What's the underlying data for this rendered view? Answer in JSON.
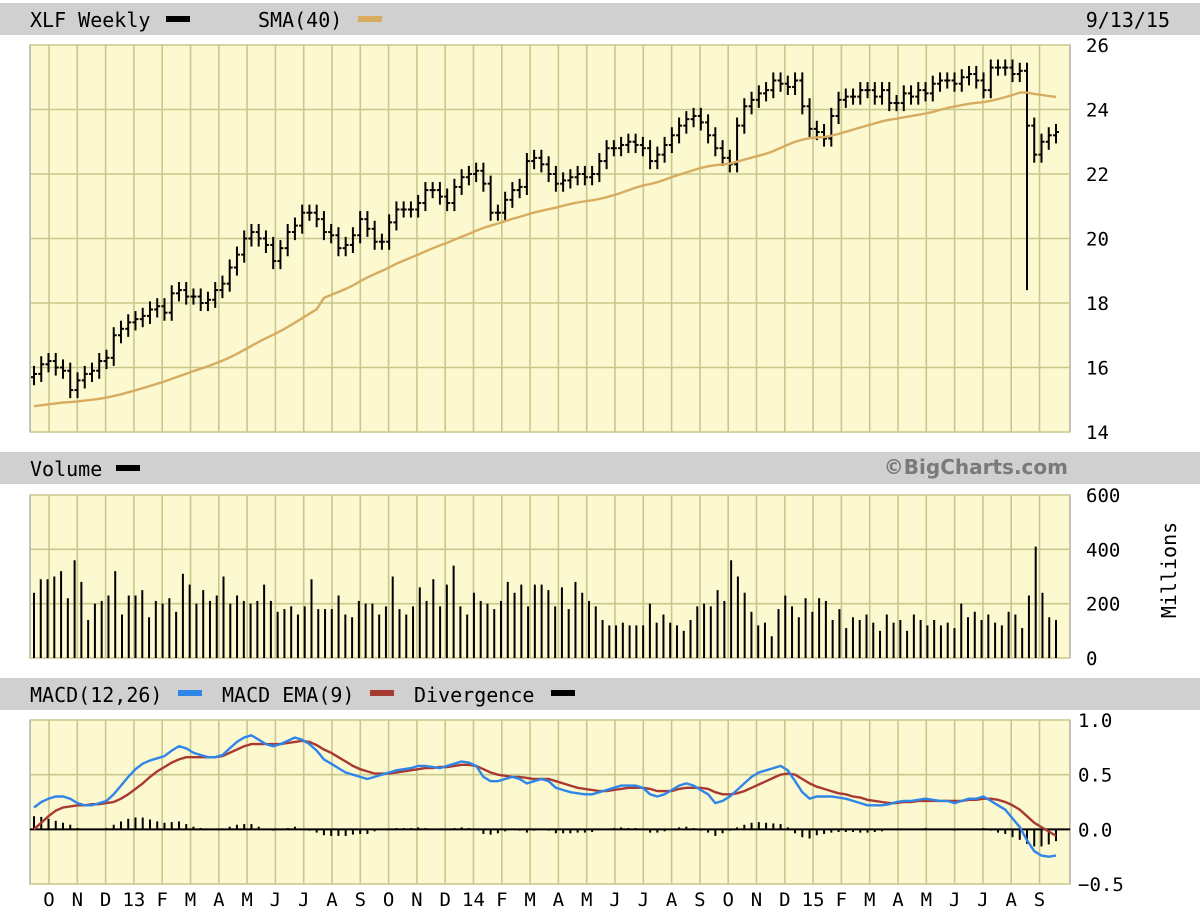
{
  "header": {
    "price_label": "XLF Weekly",
    "sma_label": "SMA(40)",
    "date": "9/13/15",
    "volume_label": "Volume",
    "watermark": "©BigCharts.com",
    "macd_label": "MACD(12,26)",
    "macd_ema_label": "MACD EMA(9)",
    "divergence_label": "Divergence",
    "volume_unit": "Millions"
  },
  "colors": {
    "plot_bg": "#fcf8d0",
    "grid": "#c8c88c",
    "band": "#d0d0d0",
    "sma": "#d8ac60",
    "macd": "#2f86e8",
    "macd_ema": "#a83a32",
    "bars": "#000000"
  },
  "x_axis": {
    "labels": [
      "O",
      "N",
      "D",
      "13",
      "F",
      "M",
      "A",
      "M",
      "J",
      "J",
      "A",
      "S",
      "O",
      "N",
      "D",
      "14",
      "F",
      "M",
      "A",
      "M",
      "J",
      "J",
      "A",
      "S",
      "O",
      "N",
      "D",
      "15",
      "F",
      "M",
      "A",
      "M",
      "J",
      "J",
      "A",
      "S"
    ]
  },
  "chart_data": [
    {
      "type": "ohlc",
      "title": "XLF Weekly",
      "ylim": [
        14,
        26
      ],
      "yticks": [
        14,
        16,
        18,
        20,
        22,
        24,
        26
      ],
      "closes": [
        15.8,
        16.1,
        16.2,
        16.0,
        15.9,
        15.3,
        15.6,
        15.8,
        15.9,
        16.2,
        16.3,
        17.0,
        17.2,
        17.4,
        17.5,
        17.6,
        17.8,
        17.9,
        17.7,
        18.3,
        18.4,
        18.2,
        18.2,
        18.0,
        18.1,
        18.4,
        18.6,
        19.1,
        19.5,
        20.0,
        20.2,
        20.0,
        19.8,
        19.3,
        19.7,
        20.2,
        20.4,
        20.8,
        20.8,
        20.6,
        20.2,
        20.1,
        19.7,
        19.8,
        20.1,
        20.6,
        20.3,
        19.9,
        19.9,
        20.5,
        20.9,
        20.9,
        20.9,
        21.1,
        21.5,
        21.5,
        21.3,
        21.1,
        21.6,
        21.9,
        22.0,
        22.1,
        21.7,
        20.8,
        20.8,
        21.2,
        21.5,
        21.6,
        22.4,
        22.5,
        22.3,
        22.0,
        21.7,
        21.8,
        21.9,
        22.0,
        21.9,
        22.0,
        22.4,
        22.8,
        22.8,
        22.9,
        23.0,
        22.9,
        22.8,
        22.4,
        22.6,
        22.9,
        23.2,
        23.5,
        23.7,
        23.8,
        23.6,
        23.2,
        22.8,
        22.5,
        22.3,
        23.5,
        24.1,
        24.3,
        24.5,
        24.6,
        24.9,
        24.8,
        24.7,
        24.9,
        24.1,
        23.4,
        23.3,
        23.1,
        23.8,
        24.3,
        24.4,
        24.4,
        24.6,
        24.6,
        24.4,
        24.6,
        24.2,
        24.2,
        24.5,
        24.4,
        24.6,
        24.5,
        24.8,
        24.9,
        24.9,
        24.8,
        25.0,
        25.1,
        24.9,
        24.6,
        25.3,
        25.3,
        25.3,
        25.1,
        25.2,
        23.5,
        22.6,
        23.0,
        23.2,
        23.3
      ],
      "sma_range": [
        14.8,
        24.3
      ]
    },
    {
      "type": "bar",
      "title": "Volume",
      "ylabel": "Millions",
      "ylim": [
        0,
        600
      ],
      "yticks": [
        0,
        200,
        400,
        600
      ],
      "values": [
        240,
        290,
        290,
        300,
        320,
        220,
        360,
        280,
        140,
        200,
        210,
        230,
        320,
        160,
        230,
        230,
        250,
        150,
        210,
        200,
        220,
        170,
        310,
        270,
        200,
        250,
        210,
        230,
        300,
        200,
        230,
        210,
        200,
        210,
        270,
        210,
        170,
        180,
        190,
        160,
        190,
        290,
        180,
        180,
        180,
        230,
        160,
        150,
        210,
        200,
        200,
        160,
        190,
        300,
        180,
        160,
        190,
        260,
        210,
        290,
        190,
        270,
        340,
        190,
        160,
        240,
        210,
        200,
        180,
        210,
        280,
        240,
        270,
        190,
        270,
        270,
        250,
        190,
        260,
        180,
        280,
        240,
        210,
        190,
        140,
        120,
        120,
        130,
        120,
        120,
        120,
        200,
        130,
        160,
        130,
        120,
        100,
        140,
        190,
        200,
        190,
        250,
        210,
        360,
        300,
        240,
        170,
        120,
        130,
        80,
        180,
        230,
        190,
        150,
        220,
        170,
        220,
        210,
        140,
        180,
        110,
        150,
        140,
        160,
        130,
        100,
        160,
        130,
        140,
        100,
        160,
        140,
        120,
        140,
        120,
        130,
        110,
        200,
        150,
        170,
        140,
        160,
        130,
        120,
        170,
        160,
        110,
        230,
        410,
        240,
        150,
        140
      ],
      "note": "weekly volume bars"
    },
    {
      "type": "line",
      "title": "MACD(12,26)",
      "ylim": [
        -0.5,
        1.0
      ],
      "yticks": [
        1.0,
        0.5,
        0.0,
        -0.5
      ],
      "ytick_labels": [
        "1.0",
        "0.5",
        "0.0",
        "−0.5"
      ],
      "series": [
        {
          "name": "MACD(12,26)",
          "values": [
            0.2,
            0.25,
            0.28,
            0.3,
            0.3,
            0.28,
            0.24,
            0.22,
            0.22,
            0.24,
            0.26,
            0.32,
            0.4,
            0.48,
            0.55,
            0.6,
            0.63,
            0.65,
            0.67,
            0.72,
            0.76,
            0.74,
            0.7,
            0.68,
            0.66,
            0.66,
            0.68,
            0.74,
            0.8,
            0.84,
            0.86,
            0.82,
            0.78,
            0.76,
            0.78,
            0.81,
            0.84,
            0.82,
            0.78,
            0.72,
            0.64,
            0.6,
            0.56,
            0.52,
            0.5,
            0.48,
            0.46,
            0.48,
            0.5,
            0.52,
            0.54,
            0.55,
            0.56,
            0.58,
            0.58,
            0.57,
            0.56,
            0.58,
            0.6,
            0.62,
            0.61,
            0.58,
            0.48,
            0.44,
            0.44,
            0.46,
            0.48,
            0.46,
            0.42,
            0.44,
            0.46,
            0.44,
            0.38,
            0.36,
            0.34,
            0.33,
            0.32,
            0.32,
            0.34,
            0.36,
            0.38,
            0.4,
            0.4,
            0.4,
            0.38,
            0.32,
            0.3,
            0.32,
            0.36,
            0.4,
            0.42,
            0.4,
            0.36,
            0.32,
            0.24,
            0.26,
            0.3,
            0.36,
            0.42,
            0.48,
            0.52,
            0.54,
            0.56,
            0.58,
            0.54,
            0.44,
            0.34,
            0.28,
            0.3,
            0.3,
            0.3,
            0.29,
            0.28,
            0.26,
            0.24,
            0.22,
            0.22,
            0.22,
            0.23,
            0.25,
            0.26,
            0.26,
            0.27,
            0.28,
            0.27,
            0.26,
            0.26,
            0.24,
            0.26,
            0.28,
            0.28,
            0.3,
            0.26,
            0.22,
            0.18,
            0.1,
            0.02,
            -0.1,
            -0.2,
            -0.24,
            -0.25,
            -0.24
          ]
        },
        {
          "name": "MACD EMA(9)",
          "values": [
            0.0,
            0.06,
            0.12,
            0.17,
            0.2,
            0.21,
            0.22,
            0.22,
            0.23,
            0.23,
            0.24,
            0.25,
            0.28,
            0.32,
            0.37,
            0.42,
            0.48,
            0.53,
            0.57,
            0.61,
            0.64,
            0.66,
            0.66,
            0.66,
            0.66,
            0.66,
            0.67,
            0.7,
            0.73,
            0.76,
            0.78,
            0.78,
            0.78,
            0.78,
            0.78,
            0.79,
            0.8,
            0.81,
            0.8,
            0.77,
            0.73,
            0.7,
            0.66,
            0.62,
            0.58,
            0.55,
            0.53,
            0.51,
            0.51,
            0.51,
            0.52,
            0.53,
            0.54,
            0.55,
            0.56,
            0.56,
            0.57,
            0.57,
            0.58,
            0.59,
            0.59,
            0.58,
            0.55,
            0.52,
            0.5,
            0.49,
            0.48,
            0.48,
            0.47,
            0.46,
            0.46,
            0.46,
            0.44,
            0.42,
            0.4,
            0.38,
            0.37,
            0.36,
            0.35,
            0.35,
            0.36,
            0.37,
            0.38,
            0.38,
            0.38,
            0.37,
            0.35,
            0.35,
            0.35,
            0.37,
            0.38,
            0.38,
            0.38,
            0.37,
            0.34,
            0.32,
            0.32,
            0.33,
            0.35,
            0.38,
            0.41,
            0.44,
            0.47,
            0.5,
            0.51,
            0.5,
            0.46,
            0.42,
            0.39,
            0.37,
            0.35,
            0.33,
            0.32,
            0.3,
            0.29,
            0.27,
            0.26,
            0.25,
            0.24,
            0.24,
            0.25,
            0.25,
            0.26,
            0.26,
            0.26,
            0.26,
            0.26,
            0.26,
            0.26,
            0.27,
            0.27,
            0.28,
            0.28,
            0.27,
            0.25,
            0.22,
            0.18,
            0.12,
            0.06,
            0.02,
            -0.02,
            -0.06
          ]
        }
      ]
    }
  ]
}
